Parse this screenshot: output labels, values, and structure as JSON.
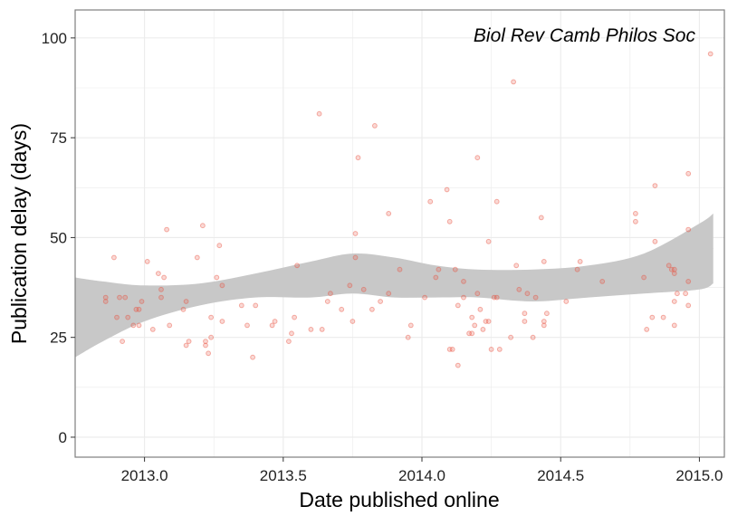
{
  "chart_data": {
    "type": "scatter",
    "annotation": "Biol Rev Camb Philos Soc",
    "xlabel": "Date published online",
    "ylabel": "Publication delay (days)",
    "xlim": [
      2012.75,
      2015.09
    ],
    "ylim": [
      -5,
      107
    ],
    "x_ticks": [
      2013.0,
      2013.5,
      2014.0,
      2014.5,
      2015.0
    ],
    "x_tick_labels": [
      "2013.0",
      "2013.5",
      "2014.0",
      "2014.5",
      "2015.0"
    ],
    "y_ticks": [
      0,
      25,
      50,
      75,
      100
    ],
    "y_tick_labels": [
      "0",
      "25",
      "50",
      "75",
      "100"
    ],
    "grid": true,
    "colors": {
      "points": "#e8503e",
      "band": "#c8c8c8",
      "smooth_line": "#c8c8c8",
      "grid": "#ebebeb",
      "border": "#7f7f7f"
    },
    "points": [
      [
        2012.86,
        35
      ],
      [
        2012.86,
        34
      ],
      [
        2012.89,
        45
      ],
      [
        2012.9,
        30
      ],
      [
        2012.91,
        35
      ],
      [
        2012.92,
        24
      ],
      [
        2012.93,
        35
      ],
      [
        2012.94,
        30
      ],
      [
        2012.96,
        28
      ],
      [
        2012.97,
        32
      ],
      [
        2012.98,
        28
      ],
      [
        2012.98,
        32
      ],
      [
        2012.99,
        34
      ],
      [
        2013.01,
        44
      ],
      [
        2013.03,
        27
      ],
      [
        2013.05,
        41
      ],
      [
        2013.06,
        37
      ],
      [
        2013.06,
        35
      ],
      [
        2013.07,
        40
      ],
      [
        2013.08,
        52
      ],
      [
        2013.09,
        28
      ],
      [
        2013.14,
        32
      ],
      [
        2013.15,
        34
      ],
      [
        2013.15,
        23
      ],
      [
        2013.16,
        24
      ],
      [
        2013.19,
        45
      ],
      [
        2013.21,
        53
      ],
      [
        2013.22,
        23
      ],
      [
        2013.22,
        24
      ],
      [
        2013.23,
        21
      ],
      [
        2013.24,
        25
      ],
      [
        2013.24,
        30
      ],
      [
        2013.26,
        40
      ],
      [
        2013.27,
        48
      ],
      [
        2013.28,
        38
      ],
      [
        2013.28,
        29
      ],
      [
        2013.35,
        33
      ],
      [
        2013.37,
        28
      ],
      [
        2013.39,
        20
      ],
      [
        2013.4,
        33
      ],
      [
        2013.46,
        28
      ],
      [
        2013.47,
        29
      ],
      [
        2013.52,
        24
      ],
      [
        2013.53,
        26
      ],
      [
        2013.54,
        30
      ],
      [
        2013.55,
        43
      ],
      [
        2013.6,
        27
      ],
      [
        2013.63,
        81
      ],
      [
        2013.64,
        27
      ],
      [
        2013.66,
        34
      ],
      [
        2013.67,
        36
      ],
      [
        2013.71,
        32
      ],
      [
        2013.74,
        38
      ],
      [
        2013.75,
        29
      ],
      [
        2013.76,
        51
      ],
      [
        2013.76,
        45
      ],
      [
        2013.77,
        70
      ],
      [
        2013.79,
        37
      ],
      [
        2013.82,
        32
      ],
      [
        2013.83,
        78
      ],
      [
        2013.85,
        34
      ],
      [
        2013.88,
        56
      ],
      [
        2013.88,
        36
      ],
      [
        2013.92,
        42
      ],
      [
        2013.95,
        25
      ],
      [
        2013.96,
        28
      ],
      [
        2014.01,
        35
      ],
      [
        2014.03,
        59
      ],
      [
        2014.05,
        40
      ],
      [
        2014.06,
        42
      ],
      [
        2014.09,
        62
      ],
      [
        2014.1,
        22
      ],
      [
        2014.1,
        54
      ],
      [
        2014.11,
        22
      ],
      [
        2014.12,
        42
      ],
      [
        2014.13,
        18
      ],
      [
        2014.13,
        33
      ],
      [
        2014.15,
        39
      ],
      [
        2014.15,
        35
      ],
      [
        2014.17,
        26
      ],
      [
        2014.18,
        26
      ],
      [
        2014.18,
        30
      ],
      [
        2014.19,
        28
      ],
      [
        2014.2,
        36
      ],
      [
        2014.2,
        70
      ],
      [
        2014.21,
        32
      ],
      [
        2014.22,
        27
      ],
      [
        2014.23,
        29
      ],
      [
        2014.24,
        49
      ],
      [
        2014.24,
        29
      ],
      [
        2014.25,
        22
      ],
      [
        2014.26,
        35
      ],
      [
        2014.27,
        59
      ],
      [
        2014.27,
        35
      ],
      [
        2014.28,
        22
      ],
      [
        2014.32,
        25
      ],
      [
        2014.33,
        89
      ],
      [
        2014.34,
        43
      ],
      [
        2014.35,
        37
      ],
      [
        2014.37,
        31
      ],
      [
        2014.37,
        29
      ],
      [
        2014.38,
        36
      ],
      [
        2014.4,
        25
      ],
      [
        2014.41,
        35
      ],
      [
        2014.43,
        55
      ],
      [
        2014.44,
        44
      ],
      [
        2014.44,
        29
      ],
      [
        2014.44,
        28
      ],
      [
        2014.45,
        31
      ],
      [
        2014.52,
        34
      ],
      [
        2014.56,
        42
      ],
      [
        2014.57,
        44
      ],
      [
        2014.65,
        39
      ],
      [
        2014.77,
        56
      ],
      [
        2014.77,
        54
      ],
      [
        2014.8,
        40
      ],
      [
        2014.81,
        27
      ],
      [
        2014.83,
        30
      ],
      [
        2014.84,
        63
      ],
      [
        2014.84,
        49
      ],
      [
        2014.87,
        30
      ],
      [
        2014.89,
        43
      ],
      [
        2014.9,
        42
      ],
      [
        2014.91,
        41
      ],
      [
        2014.91,
        42
      ],
      [
        2014.91,
        28
      ],
      [
        2014.91,
        34
      ],
      [
        2014.92,
        36
      ],
      [
        2014.95,
        36
      ],
      [
        2014.96,
        33
      ],
      [
        2014.96,
        39
      ],
      [
        2014.96,
        52
      ],
      [
        2014.96,
        66
      ],
      [
        2015.04,
        96
      ]
    ],
    "smooth": {
      "x": [
        2012.75,
        2012.85,
        2013.0,
        2013.2,
        2013.4,
        2013.6,
        2013.75,
        2013.9,
        2014.05,
        2014.2,
        2014.4,
        2014.6,
        2014.8,
        2015.0,
        2015.05
      ],
      "lower": [
        20,
        24,
        29,
        33,
        35,
        35,
        36,
        35,
        35,
        35,
        34,
        35,
        36,
        37,
        38.5
      ],
      "upper": [
        40,
        39,
        38,
        38.5,
        41,
        44,
        46,
        45,
        43,
        42,
        42,
        43,
        46,
        53.5,
        56
      ]
    }
  }
}
